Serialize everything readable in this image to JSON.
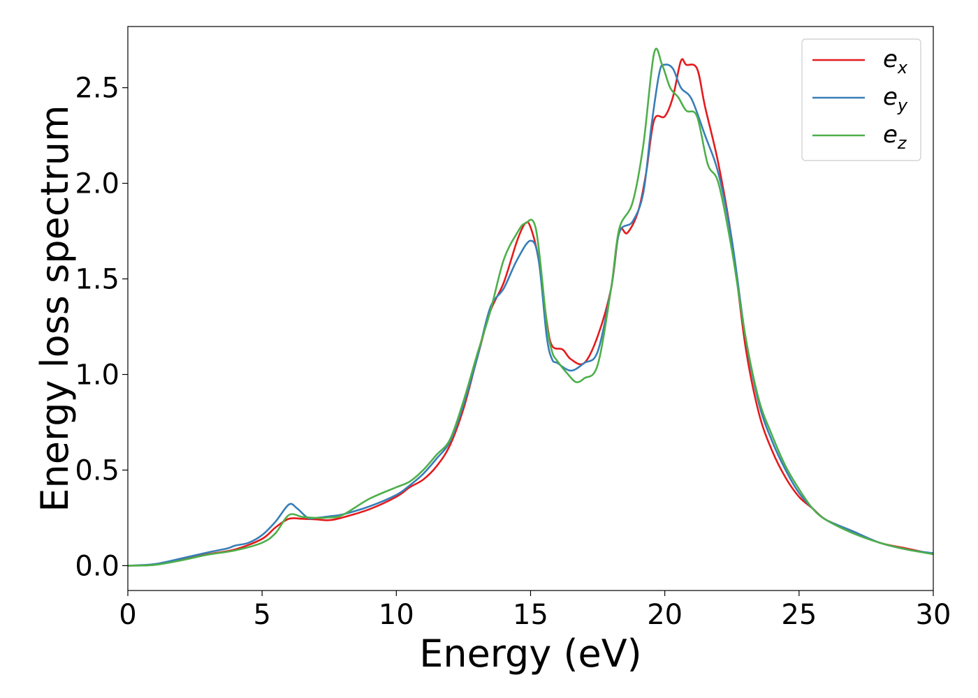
{
  "chart_data": {
    "type": "line",
    "xlabel": "Energy (eV)",
    "ylabel": "Energy loss spectrum",
    "xlim": [
      0,
      30
    ],
    "ylim": [
      -0.13,
      2.82
    ],
    "xticks": [
      0,
      5,
      10,
      15,
      20,
      25,
      30
    ],
    "xtick_labels": [
      "0",
      "5",
      "10",
      "15",
      "20",
      "25",
      "30"
    ],
    "yticks": [
      0.0,
      0.5,
      1.0,
      1.5,
      2.0,
      2.5
    ],
    "ytick_labels": [
      "0.0",
      "0.5",
      "1.0",
      "1.5",
      "2.0",
      "2.5"
    ],
    "grid": false,
    "legend_position": "top-right",
    "series": [
      {
        "name": "e_x",
        "label_base": "e",
        "label_sub": "x",
        "color": "#e41a1c",
        "points": [
          [
            0,
            0
          ],
          [
            1,
            0.005
          ],
          [
            2,
            0.03
          ],
          [
            3,
            0.06
          ],
          [
            4,
            0.085
          ],
          [
            5,
            0.14
          ],
          [
            5.5,
            0.2
          ],
          [
            6,
            0.245
          ],
          [
            6.5,
            0.245
          ],
          [
            7,
            0.242
          ],
          [
            7.5,
            0.238
          ],
          [
            8,
            0.252
          ],
          [
            9,
            0.295
          ],
          [
            10,
            0.36
          ],
          [
            10.5,
            0.41
          ],
          [
            11,
            0.45
          ],
          [
            11.5,
            0.52
          ],
          [
            12,
            0.63
          ],
          [
            12.5,
            0.82
          ],
          [
            13,
            1.08
          ],
          [
            13.5,
            1.33
          ],
          [
            14,
            1.48
          ],
          [
            14.5,
            1.7
          ],
          [
            14.8,
            1.79
          ],
          [
            15,
            1.77
          ],
          [
            15.3,
            1.6
          ],
          [
            15.6,
            1.28
          ],
          [
            15.8,
            1.15
          ],
          [
            16.2,
            1.13
          ],
          [
            16.5,
            1.08
          ],
          [
            17,
            1.06
          ],
          [
            17.5,
            1.2
          ],
          [
            18,
            1.45
          ],
          [
            18.3,
            1.75
          ],
          [
            18.6,
            1.74
          ],
          [
            19,
            1.85
          ],
          [
            19.3,
            2.05
          ],
          [
            19.6,
            2.33
          ],
          [
            20,
            2.35
          ],
          [
            20.3,
            2.45
          ],
          [
            20.6,
            2.64
          ],
          [
            20.8,
            2.62
          ],
          [
            21.2,
            2.6
          ],
          [
            21.5,
            2.4
          ],
          [
            22,
            2.1
          ],
          [
            22.5,
            1.7
          ],
          [
            23,
            1.15
          ],
          [
            23.5,
            0.8
          ],
          [
            24,
            0.6
          ],
          [
            24.5,
            0.46
          ],
          [
            25,
            0.36
          ],
          [
            25.5,
            0.3
          ],
          [
            26,
            0.24
          ],
          [
            27,
            0.18
          ],
          [
            28,
            0.12
          ],
          [
            29,
            0.09
          ],
          [
            30,
            0.06
          ]
        ]
      },
      {
        "name": "e_y",
        "label_base": "e",
        "label_sub": "y",
        "color": "#377eb8",
        "points": [
          [
            0,
            0
          ],
          [
            1,
            0.008
          ],
          [
            2,
            0.038
          ],
          [
            3,
            0.07
          ],
          [
            3.7,
            0.09
          ],
          [
            4,
            0.105
          ],
          [
            4.5,
            0.12
          ],
          [
            5,
            0.16
          ],
          [
            5.5,
            0.23
          ],
          [
            6,
            0.32
          ],
          [
            6.3,
            0.3
          ],
          [
            6.7,
            0.25
          ],
          [
            7,
            0.25
          ],
          [
            7.5,
            0.258
          ],
          [
            8,
            0.268
          ],
          [
            9,
            0.31
          ],
          [
            10,
            0.37
          ],
          [
            10.5,
            0.42
          ],
          [
            11,
            0.48
          ],
          [
            11.5,
            0.56
          ],
          [
            12,
            0.65
          ],
          [
            12.5,
            0.84
          ],
          [
            13,
            1.08
          ],
          [
            13.5,
            1.35
          ],
          [
            14,
            1.45
          ],
          [
            14.5,
            1.6
          ],
          [
            15,
            1.7
          ],
          [
            15.3,
            1.6
          ],
          [
            15.6,
            1.2
          ],
          [
            15.8,
            1.08
          ],
          [
            16,
            1.06
          ],
          [
            16.5,
            1.02
          ],
          [
            17,
            1.06
          ],
          [
            17.5,
            1.12
          ],
          [
            18,
            1.45
          ],
          [
            18.3,
            1.74
          ],
          [
            18.8,
            1.8
          ],
          [
            19.2,
            1.95
          ],
          [
            19.5,
            2.3
          ],
          [
            19.8,
            2.58
          ],
          [
            20,
            2.62
          ],
          [
            20.3,
            2.6
          ],
          [
            20.6,
            2.5
          ],
          [
            21,
            2.44
          ],
          [
            21.5,
            2.25
          ],
          [
            22,
            2.05
          ],
          [
            22.5,
            1.7
          ],
          [
            23,
            1.2
          ],
          [
            23.5,
            0.85
          ],
          [
            24,
            0.65
          ],
          [
            24.5,
            0.5
          ],
          [
            25,
            0.38
          ],
          [
            25.5,
            0.3
          ],
          [
            26,
            0.24
          ],
          [
            27,
            0.18
          ],
          [
            28,
            0.12
          ],
          [
            29,
            0.085
          ],
          [
            30,
            0.065
          ]
        ]
      },
      {
        "name": "e_z",
        "label_base": "e",
        "label_sub": "z",
        "color": "#4daf4a",
        "points": [
          [
            0,
            0
          ],
          [
            1,
            0.004
          ],
          [
            2,
            0.028
          ],
          [
            3,
            0.058
          ],
          [
            4,
            0.08
          ],
          [
            5,
            0.12
          ],
          [
            5.5,
            0.17
          ],
          [
            6,
            0.265
          ],
          [
            6.5,
            0.255
          ],
          [
            7,
            0.25
          ],
          [
            7.5,
            0.252
          ],
          [
            8,
            0.265
          ],
          [
            9,
            0.35
          ],
          [
            10,
            0.41
          ],
          [
            10.5,
            0.44
          ],
          [
            11,
            0.5
          ],
          [
            11.5,
            0.58
          ],
          [
            12,
            0.66
          ],
          [
            12.5,
            0.86
          ],
          [
            13,
            1.1
          ],
          [
            13.5,
            1.33
          ],
          [
            14,
            1.6
          ],
          [
            14.5,
            1.74
          ],
          [
            14.8,
            1.79
          ],
          [
            15.2,
            1.76
          ],
          [
            15.6,
            1.27
          ],
          [
            15.8,
            1.12
          ],
          [
            16,
            1.07
          ],
          [
            16.4,
            1.0
          ],
          [
            16.7,
            0.96
          ],
          [
            17,
            0.98
          ],
          [
            17.5,
            1.05
          ],
          [
            18,
            1.45
          ],
          [
            18.3,
            1.76
          ],
          [
            18.8,
            1.9
          ],
          [
            19.2,
            2.2
          ],
          [
            19.6,
            2.68
          ],
          [
            19.9,
            2.62
          ],
          [
            20.2,
            2.5
          ],
          [
            20.5,
            2.45
          ],
          [
            20.8,
            2.38
          ],
          [
            21.2,
            2.35
          ],
          [
            21.6,
            2.1
          ],
          [
            22,
            2.0
          ],
          [
            22.5,
            1.65
          ],
          [
            23,
            1.2
          ],
          [
            23.5,
            0.87
          ],
          [
            24,
            0.68
          ],
          [
            24.5,
            0.52
          ],
          [
            25,
            0.4
          ],
          [
            25.5,
            0.3
          ],
          [
            26,
            0.24
          ],
          [
            27,
            0.17
          ],
          [
            28,
            0.12
          ],
          [
            29,
            0.085
          ],
          [
            30,
            0.06
          ]
        ]
      }
    ]
  }
}
